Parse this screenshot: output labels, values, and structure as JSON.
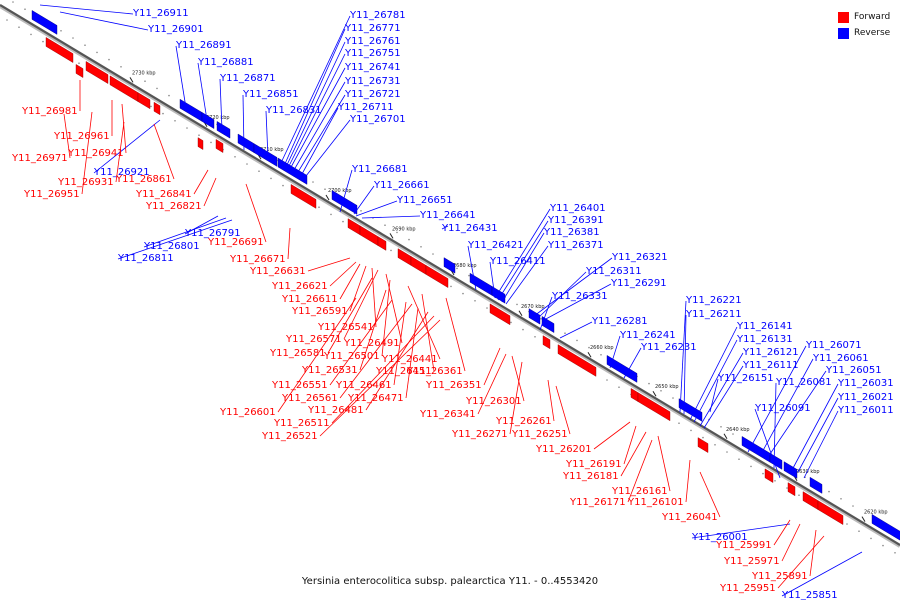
{
  "legend": {
    "forward": {
      "label": "Forward",
      "color": "#ff0000"
    },
    "reverse": {
      "label": "Reverse",
      "color": "#0000ff"
    }
  },
  "caption": "Yersinia enterocolitica subsp. palearctica Y11. - 0..4553420",
  "axis_ticks": [
    "2730 kbp",
    "2720 kbp",
    "2710 kbp",
    "2700 kbp",
    "2690 kbp",
    "2680 kbp",
    "2670 kbp",
    "2660 kbp",
    "2650 kbp",
    "2640 kbp",
    "2630 kbp",
    "2620 kbp"
  ],
  "reverse_genes": [
    "Y11_26911",
    "Y11_26901",
    "Y11_26891",
    "Y11_26881",
    "Y11_26871",
    "Y11_26851",
    "Y11_26831",
    "Y11_26781",
    "Y11_26771",
    "Y11_26761",
    "Y11_26751",
    "Y11_26741",
    "Y11_26731",
    "Y11_26721",
    "Y11_26711",
    "Y11_26701",
    "Y11_26681",
    "Y11_26661",
    "Y11_26651",
    "Y11_26641",
    "Y11_26431",
    "Y11_26421",
    "Y11_26411",
    "Y11_26401",
    "Y11_26391",
    "Y11_26381",
    "Y11_26371",
    "Y11_26321",
    "Y11_26311",
    "Y11_26291",
    "Y11_26331",
    "Y11_26281",
    "Y11_26241",
    "Y11_26231",
    "Y11_26221",
    "Y11_26211",
    "Y11_26141",
    "Y11_26131",
    "Y11_26121",
    "Y11_26111",
    "Y11_26151",
    "Y11_26071",
    "Y11_26061",
    "Y11_26051",
    "Y11_26081",
    "Y11_26091",
    "Y11_26031",
    "Y11_26021",
    "Y11_26011",
    "Y11_26921",
    "Y11_26791",
    "Y11_26801",
    "Y11_26811",
    "Y11_26001",
    "Y11_25851"
  ],
  "forward_genes": [
    "Y11_26981",
    "Y11_26961",
    "Y11_26941",
    "Y11_26971",
    "Y11_26931",
    "Y11_26951",
    "Y11_26861",
    "Y11_26841",
    "Y11_26821",
    "Y11_26691",
    "Y11_26671",
    "Y11_26631",
    "Y11_26621",
    "Y11_26611",
    "Y11_26591",
    "Y11_26541",
    "Y11_26571",
    "Y11_26491",
    "Y11_26581",
    "Y11_26501",
    "Y11_26441",
    "Y11_26531",
    "Y11_26451",
    "Y11_26361",
    "Y11_26551",
    "Y11_26461",
    "Y11_26351",
    "Y11_26561",
    "Y11_26471",
    "Y11_26601",
    "Y11_26481",
    "Y11_26511",
    "Y11_26521",
    "Y11_26301",
    "Y11_26341",
    "Y11_26261",
    "Y11_26271",
    "Y11_26251",
    "Y11_26201",
    "Y11_26191",
    "Y11_26181",
    "Y11_26161",
    "Y11_26171",
    "Y11_26101",
    "Y11_26041",
    "Y11_25991",
    "Y11_25971",
    "Y11_25891",
    "Y11_25951"
  ]
}
